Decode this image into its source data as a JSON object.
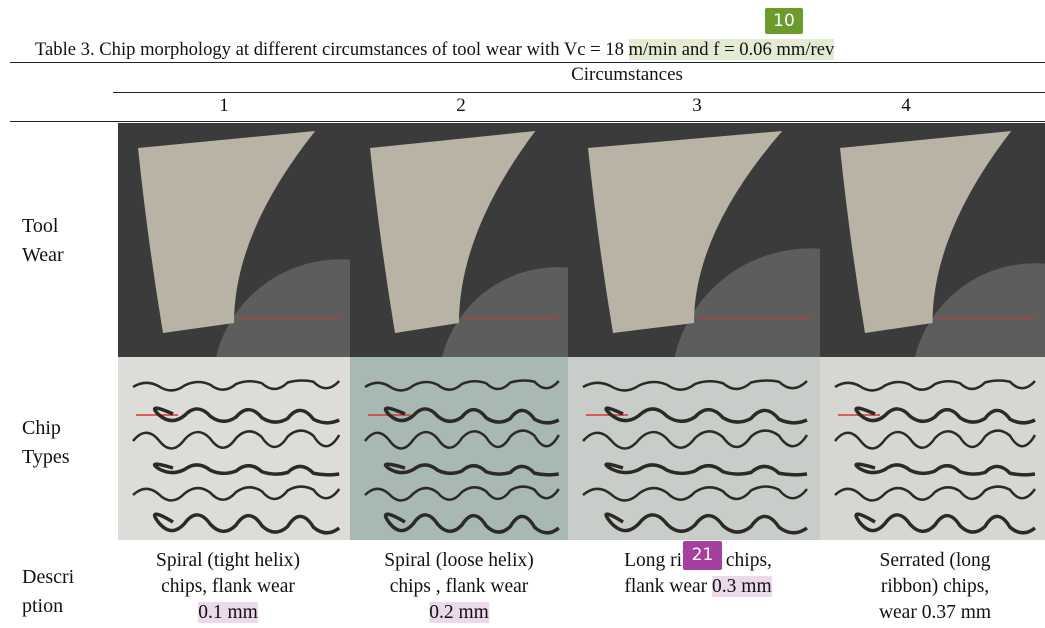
{
  "caption": {
    "lead": "Table 3. Chip morphology at different circumstances of tool wear with Vc = 18",
    "tail": "m/min and f = 0.06 mm/rev"
  },
  "annotations": [
    "10",
    "21"
  ],
  "table": {
    "group_header": "Circumstances",
    "columns": [
      "1",
      "2",
      "3",
      "4"
    ],
    "row_headers": [
      [
        "Tool",
        "Wear"
      ],
      [
        "Chip",
        "Types"
      ],
      [
        "Descri",
        "ption"
      ]
    ],
    "descriptions": [
      {
        "lines": [
          "Spiral (tight helix)",
          "chips, flank wear"
        ],
        "wear": "0.1 mm"
      },
      {
        "lines": [
          "Spiral (loose helix)",
          "chips , flank wear"
        ],
        "wear": "0.2 mm"
      },
      {
        "lines": [
          "Long ribbon chips,",
          "flank wear"
        ],
        "wear": "0.3 mm"
      },
      {
        "lines": [
          "Serrated (long",
          "ribbon) chips,",
          "wear 0.37 mm"
        ]
      }
    ]
  }
}
